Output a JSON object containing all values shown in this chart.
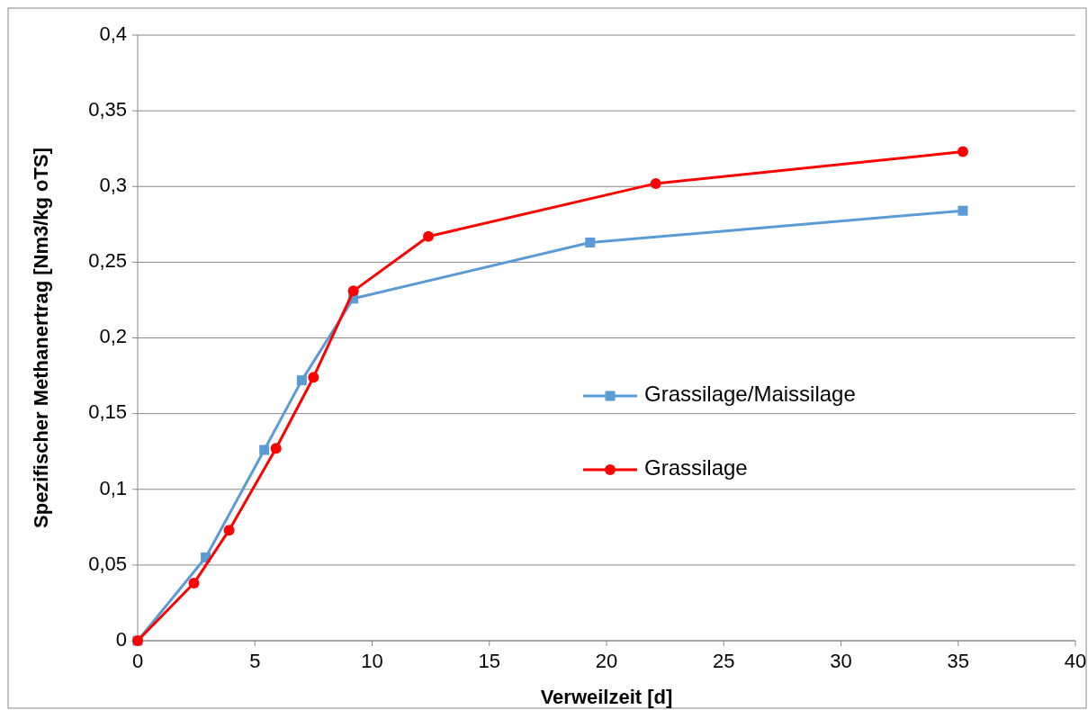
{
  "chart_data": {
    "type": "line",
    "xlabel": "Verweilzeit [d]",
    "ylabel": "Spezifischer Methanertrag [Nm3/kg oTS]",
    "xlim": [
      0,
      40
    ],
    "xticks": [
      0,
      5,
      10,
      15,
      20,
      25,
      30,
      35,
      40
    ],
    "ylim": [
      0,
      0.4
    ],
    "yticks": [
      {
        "value": 0,
        "label": "0"
      },
      {
        "value": 0.05,
        "label": "0,05"
      },
      {
        "value": 0.1,
        "label": "0,1"
      },
      {
        "value": 0.15,
        "label": "0,15"
      },
      {
        "value": 0.2,
        "label": "0,2"
      },
      {
        "value": 0.25,
        "label": "0,25"
      },
      {
        "value": 0.3,
        "label": "0,3"
      },
      {
        "value": 0.35,
        "label": "0,35"
      },
      {
        "value": 0.4,
        "label": "0,4"
      }
    ],
    "grid": "y",
    "legend": "right",
    "line_style": "solid",
    "series": [
      {
        "name": "Grassilage/Maissilage",
        "color": "#5b9bd5",
        "marker": "square",
        "x": [
          0,
          2.9,
          5.4,
          7.0,
          9.2,
          19.3,
          35.2
        ],
        "values": [
          0,
          0.055,
          0.126,
          0.172,
          0.226,
          0.263,
          0.284
        ]
      },
      {
        "name": "Grassilage",
        "color": "#ff0000",
        "marker": "circle",
        "x": [
          0,
          2.4,
          3.9,
          5.9,
          7.5,
          9.2,
          12.4,
          22.1,
          35.2
        ],
        "values": [
          0,
          0.038,
          0.073,
          0.127,
          0.174,
          0.231,
          0.267,
          0.302,
          0.323
        ]
      }
    ]
  }
}
